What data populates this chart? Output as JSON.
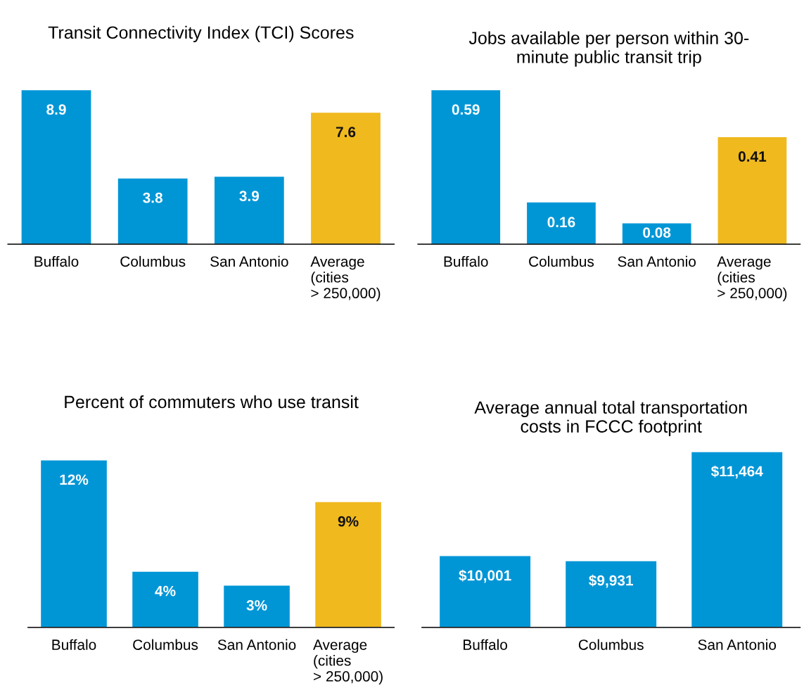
{
  "chart_data": [
    {
      "type": "bar",
      "title": "Transit Connectivity Index (TCI) Scores",
      "categories": [
        "Buffalo",
        "Columbus",
        "San Antonio",
        "Average\n(cities\n> 250,000)"
      ],
      "values": [
        8.9,
        3.8,
        3.9,
        7.6
      ],
      "colors": [
        "#0096d6",
        "#0096d6",
        "#0096d6",
        "#f0b91e"
      ],
      "value_labels": [
        "8.9",
        "3.8",
        "3.9",
        "7.6"
      ],
      "tick_labels": "x",
      "grid": false
    },
    {
      "type": "bar",
      "title": "Jobs available per person within 30-\nminute public transit trip",
      "categories": [
        "Buffalo",
        "Columbus",
        "San Antonio",
        "Average\n(cities\n> 250,000)"
      ],
      "values": [
        0.59,
        0.16,
        0.08,
        0.41
      ],
      "colors": [
        "#0096d6",
        "#0096d6",
        "#0096d6",
        "#f0b91e"
      ],
      "value_labels": [
        "0.59",
        "0.16",
        "0.08",
        "0.41"
      ],
      "tick_labels": "x",
      "grid": false
    },
    {
      "type": "bar",
      "title": "Percent of commuters who use transit",
      "categories": [
        "Buffalo",
        "Columbus",
        "San Antonio",
        "Average\n(cities\n> 250,000)"
      ],
      "values": [
        12,
        4,
        3,
        9
      ],
      "colors": [
        "#0096d6",
        "#0096d6",
        "#0096d6",
        "#f0b91e"
      ],
      "value_labels": [
        "12%",
        "4%",
        "3%",
        "9%"
      ],
      "tick_labels": "x",
      "grid": false
    },
    {
      "type": "bar",
      "title": "Average annual total transportation\ncosts in FCCC footprint",
      "categories": [
        "Buffalo",
        "Columbus",
        "San Antonio"
      ],
      "values": [
        10001,
        9931,
        11464
      ],
      "colors": [
        "#0096d6",
        "#0096d6",
        "#0096d6"
      ],
      "value_labels": [
        "$10,001",
        "$9,931",
        "$11,464"
      ],
      "ylim": [
        9000,
        11464
      ],
      "tick_labels": "x",
      "grid": false
    }
  ]
}
